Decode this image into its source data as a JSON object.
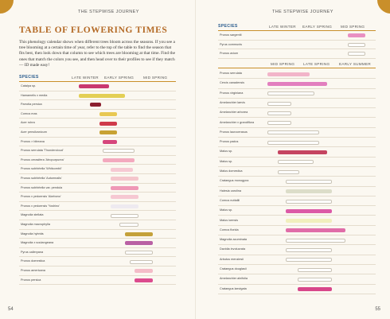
{
  "left_page": {
    "running_head": "THE STEPWISE JOURNEY",
    "title": "TABLE OF FLOWERING TIMES",
    "intro": "This phenology calendar shows when different trees bloom across the seasons. If you see a tree blooming at a certain time of year, refer to the top of the table to find the season that fits best, then look down that column to see which trees are blooming at that time. Find the ones that match the colors you see, and then head over to their profiles to see if they match— ID made easy!",
    "headers": {
      "species": "SPECIES",
      "c1": "LATE WINTER",
      "c2": "EARLY SPRING",
      "c3": "MID SPRING"
    },
    "page_number": "54",
    "rows": [
      {
        "name": "Catalpa sp.",
        "color": "#c9386f",
        "start": 0.04,
        "end": 0.34
      },
      {
        "name": "Hamamelis x media",
        "color": "#e3cf55",
        "start": 0.04,
        "end": 0.5
      },
      {
        "name": "Parrotia persica",
        "color": "#8b1f2e",
        "start": 0.15,
        "end": 0.26
      },
      {
        "name": "Cornus mas",
        "color": "#e8c853",
        "start": 0.25,
        "end": 0.42
      },
      {
        "name": "Acer rubra",
        "color": "#cf3b4b",
        "start": 0.25,
        "end": 0.42
      },
      {
        "name": "Acer pensilvanicum",
        "color": "#c8a234",
        "start": 0.25,
        "end": 0.42
      },
      {
        "name": "Prunus × blireana",
        "color": "#d6467c",
        "start": 0.28,
        "end": 0.42
      },
      {
        "name": "Prunus serrulata 'Thundercloud'",
        "color": "#ffffff",
        "start": 0.28,
        "end": 0.6
      },
      {
        "name": "Prunus cerasifera 'Atropurpurea'",
        "color": "#f3a9be",
        "start": 0.28,
        "end": 0.6
      },
      {
        "name": "Prunus subhirtella 'Whitcombii'",
        "color": "#f6c9d3",
        "start": 0.36,
        "end": 0.58
      },
      {
        "name": "Prunus subhirtella 'Autumnalis'",
        "color": "#f4c6cc",
        "start": 0.36,
        "end": 0.64
      },
      {
        "name": "Prunus subhirtella var. pendula",
        "color": "#ef98b6",
        "start": 0.36,
        "end": 0.64
      },
      {
        "name": "Prunus x yedoensis 'Akebono'",
        "color": "#f6c8d2",
        "start": 0.36,
        "end": 0.64
      },
      {
        "name": "Prunus x yedoensis 'Yoshino'",
        "color": "#eeeaf0",
        "start": 0.36,
        "end": 0.64
      },
      {
        "name": "Magnolia stellata",
        "color": "#ffffff",
        "start": 0.36,
        "end": 0.64
      },
      {
        "name": "Magnolia macrophylla",
        "color": "#ffffff",
        "start": 0.45,
        "end": 0.64
      },
      {
        "name": "Magnolia hybrids",
        "color": "#c4a13a",
        "start": 0.5,
        "end": 0.78
      },
      {
        "name": "Magnolia x soulangeana",
        "color": "#b960a4",
        "start": 0.5,
        "end": 0.78
      },
      {
        "name": "Pyrus calleryana",
        "color": "#ffffff",
        "start": 0.5,
        "end": 0.78
      },
      {
        "name": "Prunus domestica",
        "color": "#ffffff",
        "start": 0.55,
        "end": 0.78
      },
      {
        "name": "Prunus americana",
        "color": "#f4bcc8",
        "start": 0.6,
        "end": 0.78
      },
      {
        "name": "Prunus persica",
        "color": "#dc4b8e",
        "start": 0.6,
        "end": 0.78
      }
    ]
  },
  "right_page": {
    "running_head": "THE STEPWISE JOURNEY",
    "headers_top": {
      "species": "SPECIES",
      "c1": "LATE WINTER",
      "c2": "EARLY SPRING",
      "c3": "MID SPRING"
    },
    "top_rows": [
      {
        "name": "Prunus sargentii",
        "color": "#e990c2",
        "start": 0.74,
        "end": 0.92
      },
      {
        "name": "Pyrus communis",
        "color": "#ffffff",
        "start": 0.74,
        "end": 0.92
      },
      {
        "name": "Prunus avium",
        "color": "#ffffff",
        "start": 0.74,
        "end": 0.92
      }
    ],
    "headers_mid": {
      "c1": "MID SPRING",
      "c2": "LATE SPRING",
      "c3": "EARLY SUMMER"
    },
    "rows": [
      {
        "name": "Prunus serrulata",
        "color": "#f2b5c9",
        "start": 0.0,
        "end": 0.42
      },
      {
        "name": "Cercis canadensis",
        "color": "#e27fbf",
        "start": 0.0,
        "end": 0.6
      },
      {
        "name": "Prunus virginiana",
        "color": "#ffffff",
        "start": 0.0,
        "end": 0.47
      },
      {
        "name": "Amelanchier laevis",
        "color": "#ffffff",
        "start": 0.0,
        "end": 0.24
      },
      {
        "name": "Amelanchier arborea",
        "color": "#ffffff",
        "start": 0.0,
        "end": 0.24
      },
      {
        "name": "Amelanchier x grandiflora",
        "color": "#ffffff",
        "start": 0.0,
        "end": 0.24
      },
      {
        "name": "Prunus laurocerasus",
        "color": "#ffffff",
        "start": 0.0,
        "end": 0.52
      },
      {
        "name": "Prunus padus",
        "color": "#ffffff",
        "start": 0.0,
        "end": 0.52
      },
      {
        "name": "Malus sp.",
        "color": "#c54561",
        "start": 0.1,
        "end": 0.6
      },
      {
        "name": "Malus sp.",
        "color": "#ffffff",
        "start": 0.1,
        "end": 0.46
      },
      {
        "name": "Malus domestica",
        "color": "#ffffff",
        "start": 0.1,
        "end": 0.32
      },
      {
        "name": "Crataegus monogyna",
        "color": "#ffffff",
        "start": 0.18,
        "end": 0.65
      },
      {
        "name": "Halesia carolina",
        "color": "#dcddc9",
        "start": 0.18,
        "end": 0.65
      },
      {
        "name": "Cornus nuttallii",
        "color": "#ffffff",
        "start": 0.18,
        "end": 0.65
      },
      {
        "name": "Malus sp.",
        "color": "#dc5aa7",
        "start": 0.18,
        "end": 0.65
      },
      {
        "name": "Malus ioensis",
        "color": "#f1efbd",
        "start": 0.18,
        "end": 0.65
      },
      {
        "name": "Cornus florida",
        "color": "#e06da8",
        "start": 0.18,
        "end": 0.78
      },
      {
        "name": "Magnolia acuminata",
        "color": "#ffffff",
        "start": 0.18,
        "end": 0.78
      },
      {
        "name": "Davidia involucrata",
        "color": "#ffffff",
        "start": 0.18,
        "end": 0.65
      },
      {
        "name": "Arbutus menziesii",
        "color": "#ffffff",
        "start": 0.18,
        "end": 0.65
      },
      {
        "name": "Crataegus douglasii",
        "color": "#ffffff",
        "start": 0.3,
        "end": 0.65
      },
      {
        "name": "Amelanchier alnifolia",
        "color": "#ffffff",
        "start": 0.3,
        "end": 0.65
      },
      {
        "name": "Crataegus laevigata",
        "color": "#d8478a",
        "start": 0.3,
        "end": 0.65
      }
    ],
    "page_number": "55"
  }
}
